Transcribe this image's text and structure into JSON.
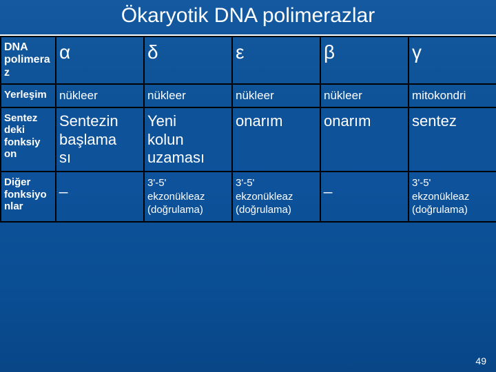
{
  "title": "Ökaryotik DNA polimerazlar",
  "page_number": "49",
  "table": {
    "header": {
      "label": "DNA polimeraz",
      "c1": "α",
      "c2": "δ",
      "c3": "ε",
      "c4": "β",
      "c5": "γ"
    },
    "row_location": {
      "label": "Yerleşim",
      "c1": "nükleer",
      "c2": "nükleer",
      "c3": "nükleer",
      "c4": "nükleer",
      "c5": "mitokondri"
    },
    "row_function": {
      "label": "Sentezdeki fonksiyon",
      "c1": "Sentezin başlaması",
      "c2": "Yeni kolun uzaması",
      "c3": "onarım",
      "c4": "onarım",
      "c5": "sentez"
    },
    "row_other": {
      "label": "Diğer fonksiyonlar",
      "c1": "_",
      "c2": "3'-5' ekzonükleaz (doğrulama)",
      "c3": "3'-5' ekzonükleaz (doğrulama)",
      "c4": "_",
      "c5": "3'-5' ekzonükleaz (doğrulama)"
    }
  }
}
